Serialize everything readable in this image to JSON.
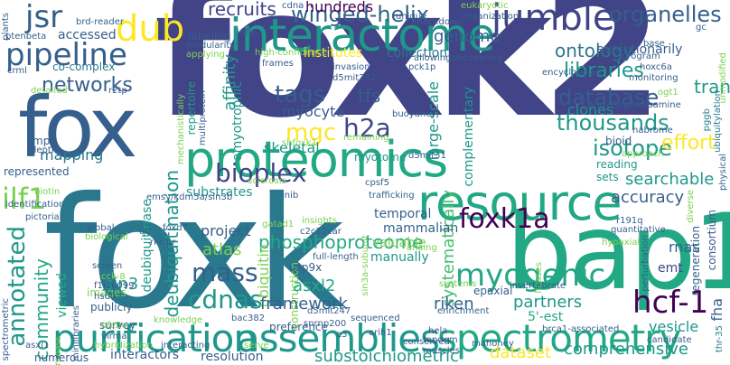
{
  "words": {
    "foxk2": "foxk2",
    "foxk": "foxk",
    "bap1": "bap1",
    "fox": "fox",
    "interactome": "interactome",
    "resource": "resource",
    "proteomics": "proteomics",
    "purification": "purification",
    "assemblies": "assemblies",
    "spectrometry": "spectrometry",
    "pipeline": "pipeline",
    "jumbled": "jumbled",
    "jsr": "jsr",
    "dub": "dub",
    "organelles": "organelles",
    "winged_helix": "winged-helix",
    "foxk1a": "foxk1a",
    "myogenic": "myogenic",
    "hcf_1": "hcf-1",
    "ilf1": "ilf1",
    "annotated": "annotated",
    "mass": "mass",
    "cdnas": "cdnas",
    "h2a": "h2a",
    "tags": "tags",
    "mgc": "mgc",
    "bioplex": "bioplex",
    "phosphoproteome": "phosphoproteome",
    "database": "database",
    "thousands": "thousands",
    "isotope": "isotope",
    "networks": "networks",
    "recruits": "recruits",
    "hundreds": "hundreds",
    "genome": "genome",
    "ontology": "ontology",
    "libraries": "libraries",
    "transcriptome": "transcriptome",
    "effort": "effort",
    "deubiquitination": "deubiquitination",
    "asxl2": "asxl2",
    "sin3": "sin3",
    "community": "community",
    "riken": "riken",
    "framework": "framework",
    "substoichiometric": "substoichiometric",
    "dataset": "dataset",
    "comprehensive": "comprehensive",
    "partners": "partners",
    "searchable": "searchable",
    "accuracy": "accuracy",
    "tfs": "tfs",
    "myocyte": "myocyte",
    "skeletal": "skeletal",
    "substrates": "substrates",
    "atlas": "atlas",
    "project": "project",
    "mapping": "mapping",
    "clones": "clones",
    "evolutionarily": "evolutionarily",
    "affinity": "affinity",
    "amyotrophic": "amyotrophic",
    "collection": "collection",
    "institutes": "institutes",
    "accessed": "accessed",
    "co_complex": "co-complex",
    "labeling": "labeling",
    "cdna": "cdna",
    "unique": "unique",
    "brd_reader": "brd-reader",
    "plants": "plants",
    "ptenbeta": "ptenbeta",
    "eukaryotic": "eukaryotic",
    "repertoire": "repertoire",
    "viewed": "viewed",
    "ubiquitin": "ubiquitin",
    "usp9x": "usp9x",
    "preference": "preference",
    "survey": "survey",
    "publicly": "publicly",
    "images": "images",
    "interactors": "interactors",
    "resolution": "resolution",
    "numerous": "numerous",
    "fha": "fha",
    "vesicle": "vesicle",
    "emt": "emt",
    "rnas": "rnas",
    "manually": "manually",
    "valuable": "valuable",
    "mammalian": "mammalian",
    "temporal": "temporal",
    "large_scale": "large-scale",
    "complementary": "complementary",
    "systematically": "systematically",
    "deubiquitinase": "deubiquitinase",
    "represented": "represented",
    "myotome": "myotome",
    "epaxial": "epaxial",
    "reading": "reading",
    "sets": "sets",
    "bioid": "bioid",
    "5_est": "5'-est",
    "depth": "depth",
    "mpc": "mpc",
    "crml": "crml",
    "detailed": "detailed",
    "r2tp": "r2tp",
    "frames": "frames",
    "invasion": "invasion",
    "d5mit292": "d5mit292",
    "pck1p": "pck1p",
    "knockdown": "knockdown",
    "allowing": "allowing",
    "uncovering": "uncovering",
    "organization": "organization",
    "encyclopedia": "encyclopedia",
    "hoxc6a": "hoxc6a",
    "program": "program",
    "monitoring": "monitoring",
    "base": "base",
    "gc": "gc",
    "ubiquitylation": "ubiquitylation",
    "n_acetylglucosamine": "n-acetylglucosamine",
    "high_confidence": "high-confidence",
    "applying": "applying",
    "modularity": "modularity",
    "infls": "infls",
    "mechanistically": "mechanistically",
    "multiprotein": "multiprotein",
    "buoyancy": "buoyancy",
    "shfoxk1": "shfoxk1",
    "remaining": "remaining",
    "sclerosis": "sclerosis",
    "d5mit31": "d5mit31",
    "cpsf5": "cpsf5",
    "trafficking": "trafficking",
    "emsy_kdm5a_sin3b": "emsy/kdm5a/sin3b",
    "inib": "inib",
    "identification": "identification",
    "pictorial": "pictorial",
    "biotin": "biotin",
    "global": "global",
    "biological": "biological",
    "orf": "orf",
    "rkrrpr": "rkrrpr",
    "foxd7": "foxd7",
    "gatad1": "gatad1",
    "insights": "insights",
    "c2c12car": "c2c12car",
    "sin3a_subunit": "sin3a-subunit",
    "arising": "arising",
    "r191q": "r191q",
    "hypaxial": "hypaxial",
    "diverse": "diverse",
    "quantitative": "quantitative",
    "regeneration": "regeneration",
    "consortium": "consortium",
    "physical": "physical",
    "screen": "screen",
    "cck_8": "cck-8",
    "f1j16099": "f1j16099",
    "hs60": "hs60",
    "full_length": "full-length",
    "construction": "construction",
    "systems": "systems",
    "enrichment": "enrichment",
    "invertebrate": "invertebrate",
    "hela": "hela",
    "ligases": "ligases",
    "knowledge": "knowledge",
    "sequenced": "sequenced",
    "virma": "virma",
    "hybridization": "hybridization",
    "bac382": "bac382",
    "d5mit247": "d5mit247",
    "snrnp200": "snrnp200",
    "e3": "e3",
    "tandem": "tandem",
    "brca1_associated": "brca1-associated",
    "candidate": "candidate",
    "muscles": "muscles",
    "conserved": "conserved",
    "arih1": "arih1",
    "mahoney": "mahoney",
    "spectrometric": "spectrometric",
    "asxl1": "asxl1",
    "compass": "compass",
    "minilibraries": "minilibraries",
    "nfe2u": "nfe2u",
    "interacting": "interacting",
    "serve": "serve",
    "thr_35": "thr-35",
    "approach": "approach",
    "nabrome": "nabrome",
    "ogt1": "ogt1",
    "perturbation": "perturbation",
    "pggb": "pggb",
    "unmodified": "unmodified"
  }
}
